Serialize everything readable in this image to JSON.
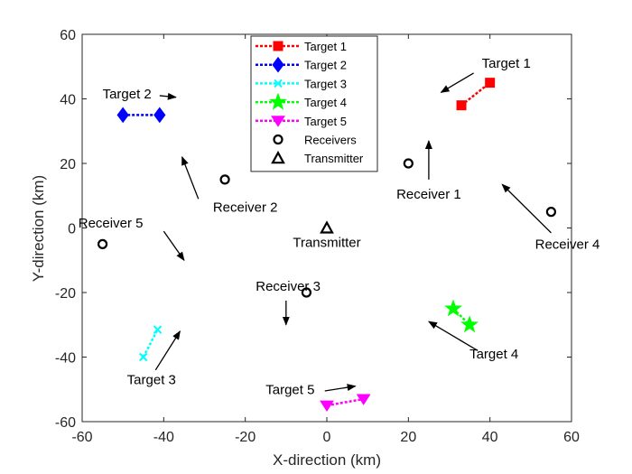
{
  "chart_data": {
    "type": "scatter",
    "xlabel": "X-direction (km)",
    "ylabel": "Y-direction (km)",
    "xlim": [
      -60,
      60
    ],
    "ylim": [
      -60,
      60
    ],
    "xticks": [
      -60,
      -40,
      -20,
      0,
      20,
      40,
      60
    ],
    "yticks": [
      -60,
      -40,
      -20,
      0,
      20,
      40,
      60
    ],
    "grid": false,
    "legend_position": "top-center",
    "targets": [
      {
        "name": "Target 1",
        "color": "#ff0000",
        "marker": "square",
        "x": [
          33,
          40
        ],
        "y": [
          38,
          45
        ]
      },
      {
        "name": "Target 2",
        "color": "#0000ff",
        "marker": "diamond",
        "x": [
          -50,
          -41
        ],
        "y": [
          35,
          35
        ]
      },
      {
        "name": "Target 3",
        "color": "#00ffff",
        "marker": "x",
        "x": [
          -45,
          -41.5
        ],
        "y": [
          -40,
          -31.5
        ]
      },
      {
        "name": "Target 4",
        "color": "#00ff00",
        "marker": "pentagram",
        "x": [
          31,
          35
        ],
        "y": [
          -25,
          -30
        ]
      },
      {
        "name": "Target 5",
        "color": "#ff00ff",
        "marker": "triangle-down",
        "x": [
          0,
          9
        ],
        "y": [
          -55,
          -53
        ]
      }
    ],
    "receivers": {
      "name": "Receivers",
      "points": [
        {
          "label": "Receiver 1",
          "x": 20,
          "y": 20
        },
        {
          "label": "Receiver 2",
          "x": -25,
          "y": 15
        },
        {
          "label": "Receiver 3",
          "x": -5,
          "y": -20
        },
        {
          "label": "Receiver 4",
          "x": 55,
          "y": 5
        },
        {
          "label": "Receiver 5",
          "x": -55,
          "y": -5
        }
      ]
    },
    "transmitter": {
      "name": "Transmitter",
      "label": "Transmitter",
      "x": 0,
      "y": 0
    },
    "annotations": [
      {
        "text": "Target 1",
        "text_x": 44,
        "text_y": 51,
        "arrow_from": [
          36,
          48
        ],
        "arrow_to": [
          28,
          42
        ]
      },
      {
        "text": "Target 2",
        "text_x": -49,
        "text_y": 41.5,
        "arrow_from": [
          -41,
          41
        ],
        "arrow_to": [
          -37,
          40.5
        ]
      },
      {
        "text": "Target 3",
        "text_x": -43,
        "text_y": -47,
        "arrow_from": [
          -42,
          -44
        ],
        "arrow_to": [
          -36,
          -32
        ]
      },
      {
        "text": "Target 4",
        "text_x": 41,
        "text_y": -39,
        "arrow_from": [
          37,
          -38
        ],
        "arrow_to": [
          25,
          -29
        ]
      },
      {
        "text": "Target 5",
        "text_x": -9,
        "text_y": -50,
        "arrow_from": [
          -0.5,
          -50.5
        ],
        "arrow_to": [
          7,
          -49
        ]
      },
      {
        "text": "Receiver 1",
        "text_x": 25,
        "text_y": 10.5,
        "arrow_from": [
          25,
          15
        ],
        "arrow_to": [
          25,
          27
        ]
      },
      {
        "text": "Receiver 2",
        "text_x": -20,
        "text_y": 6.5,
        "arrow_from": [
          -31.5,
          9
        ],
        "arrow_to": [
          -35.5,
          22
        ]
      },
      {
        "text": "Receiver 3",
        "text_x": -9.5,
        "text_y": -18,
        "arrow_from": [
          -10,
          -22.5
        ],
        "arrow_to": [
          -10,
          -30
        ]
      },
      {
        "text": "Receiver 4",
        "text_x": 59,
        "text_y": -5,
        "arrow_from": [
          55,
          -1.5
        ],
        "arrow_to": [
          43,
          13.5
        ]
      },
      {
        "text": "Receiver 5",
        "text_x": -53,
        "text_y": 1.5,
        "arrow_from": [
          -40,
          -1
        ],
        "arrow_to": [
          -35,
          -10
        ]
      },
      {
        "text": "Transmitter",
        "text_x": 0,
        "text_y": -4.5,
        "arrow_from": null,
        "arrow_to": null
      }
    ]
  }
}
